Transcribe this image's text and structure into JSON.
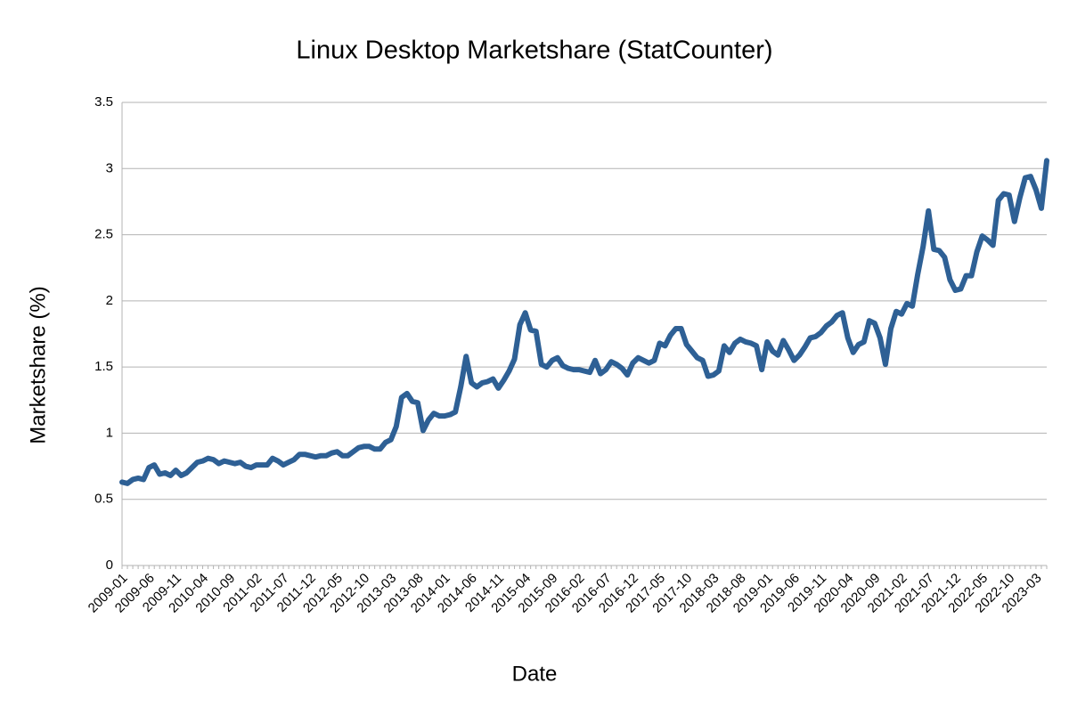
{
  "chart_data": {
    "type": "line",
    "title": "Linux Desktop Marketshare (StatCounter)",
    "x_label": "Date",
    "y_label": "Marketshare (%)",
    "categories": [
      "2009-01",
      null,
      null,
      null,
      null,
      "2009-06",
      null,
      null,
      null,
      null,
      "2009-11",
      null,
      null,
      null,
      null,
      "2010-04",
      null,
      null,
      null,
      null,
      "2010-09",
      null,
      null,
      null,
      null,
      "2011-02",
      null,
      null,
      null,
      null,
      "2011-07",
      null,
      null,
      null,
      null,
      "2011-12",
      null,
      null,
      null,
      null,
      "2012-05",
      null,
      null,
      null,
      null,
      "2012-10",
      null,
      null,
      null,
      null,
      "2013-03",
      null,
      null,
      null,
      null,
      "2013-08",
      null,
      null,
      null,
      null,
      "2014-01",
      null,
      null,
      null,
      null,
      "2014-06",
      null,
      null,
      null,
      null,
      "2014-11",
      null,
      null,
      null,
      null,
      "2015-04",
      null,
      null,
      null,
      null,
      "2015-09",
      null,
      null,
      null,
      null,
      "2016-02",
      null,
      null,
      null,
      null,
      "2016-07",
      null,
      null,
      null,
      null,
      "2016-12",
      null,
      null,
      null,
      null,
      "2017-05",
      null,
      null,
      null,
      null,
      "2017-10",
      null,
      null,
      null,
      null,
      "2018-03",
      null,
      null,
      null,
      null,
      "2018-08",
      null,
      null,
      null,
      null,
      "2019-01",
      null,
      null,
      null,
      null,
      "2019-06",
      null,
      null,
      null,
      null,
      "2019-11",
      null,
      null,
      null,
      null,
      "2020-04",
      null,
      null,
      null,
      null,
      "2020-09",
      null,
      null,
      null,
      null,
      "2021-02",
      null,
      null,
      null,
      null,
      "2021-07",
      null,
      null,
      null,
      null,
      "2021-12",
      null,
      null,
      null,
      null,
      "2022-05",
      null,
      null,
      null,
      null,
      "2022-10",
      null,
      null,
      null,
      null,
      "2023-03",
      null,
      null
    ],
    "values": [
      0.63,
      0.62,
      0.65,
      0.66,
      0.65,
      0.74,
      0.76,
      0.69,
      0.7,
      0.68,
      0.72,
      0.68,
      0.7,
      0.74,
      0.78,
      0.79,
      0.81,
      0.8,
      0.77,
      0.79,
      0.78,
      0.77,
      0.78,
      0.75,
      0.74,
      0.76,
      0.76,
      0.76,
      0.81,
      0.79,
      0.76,
      0.78,
      0.8,
      0.84,
      0.84,
      0.83,
      0.82,
      0.83,
      0.83,
      0.85,
      0.86,
      0.83,
      0.83,
      0.86,
      0.89,
      0.9,
      0.9,
      0.88,
      0.88,
      0.93,
      0.95,
      1.05,
      1.27,
      1.3,
      1.24,
      1.23,
      1.02,
      1.1,
      1.15,
      1.13,
      1.13,
      1.14,
      1.16,
      1.35,
      1.58,
      1.38,
      1.35,
      1.38,
      1.39,
      1.41,
      1.34,
      1.4,
      1.47,
      1.56,
      1.82,
      1.91,
      1.78,
      1.77,
      1.52,
      1.5,
      1.55,
      1.57,
      1.51,
      1.49,
      1.48,
      1.48,
      1.47,
      1.46,
      1.55,
      1.45,
      1.48,
      1.54,
      1.52,
      1.49,
      1.44,
      1.53,
      1.57,
      1.55,
      1.53,
      1.55,
      1.68,
      1.66,
      1.74,
      1.79,
      1.79,
      1.67,
      1.62,
      1.57,
      1.55,
      1.43,
      1.44,
      1.47,
      1.66,
      1.61,
      1.68,
      1.71,
      1.69,
      1.68,
      1.66,
      1.48,
      1.69,
      1.62,
      1.59,
      1.7,
      1.63,
      1.55,
      1.59,
      1.65,
      1.72,
      1.73,
      1.76,
      1.81,
      1.84,
      1.89,
      1.91,
      1.72,
      1.61,
      1.67,
      1.69,
      1.85,
      1.83,
      1.72,
      1.52,
      1.79,
      1.92,
      1.9,
      1.98,
      1.96,
      2.2,
      2.41,
      2.68,
      2.39,
      2.38,
      2.33,
      2.16,
      2.08,
      2.09,
      2.19,
      2.19,
      2.37,
      2.49,
      2.46,
      2.42,
      2.76,
      2.81,
      2.8,
      2.6,
      2.78,
      2.93,
      2.94,
      2.84,
      2.7,
      3.06
    ],
    "color": "#2e6095",
    "ylim": [
      0,
      3.5
    ],
    "yticks": [
      0,
      0.5,
      1,
      1.5,
      2,
      2.5,
      3,
      3.5
    ],
    "grid": true
  }
}
